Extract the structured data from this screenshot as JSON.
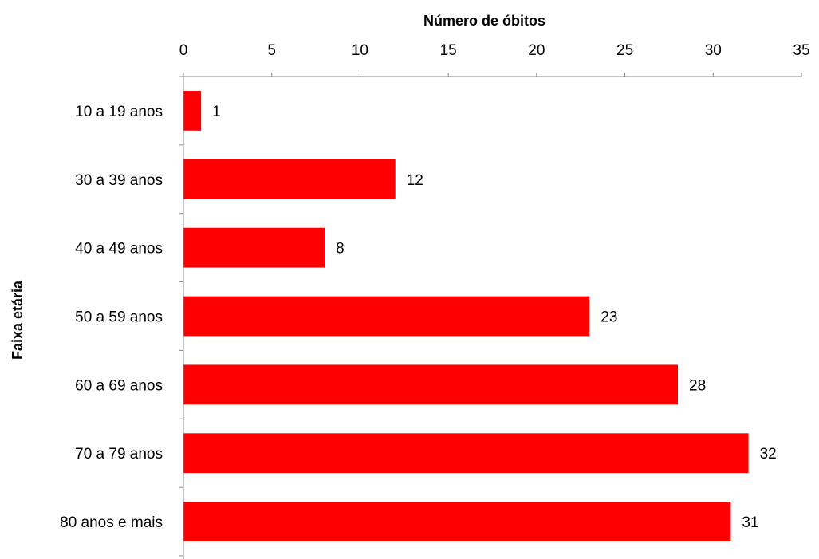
{
  "chart_data": {
    "type": "bar",
    "orientation": "horizontal",
    "categories": [
      "10 a 19 anos",
      "30 a 39 anos",
      "40 a 49 anos",
      "50 a 59 anos",
      "60 a 69 anos",
      "70 a 79 anos",
      "80 anos e mais"
    ],
    "values": [
      1,
      12,
      8,
      23,
      28,
      32,
      31
    ],
    "xlabel": "Número de óbitos",
    "ylabel": "Faixa etária",
    "xlim": [
      0,
      35
    ],
    "xticks": [
      0,
      5,
      10,
      15,
      20,
      25,
      30,
      35
    ],
    "x_axis_position": "top",
    "grid": false,
    "legend": "none",
    "data_labels": true,
    "bar_color": "#ff0000"
  }
}
